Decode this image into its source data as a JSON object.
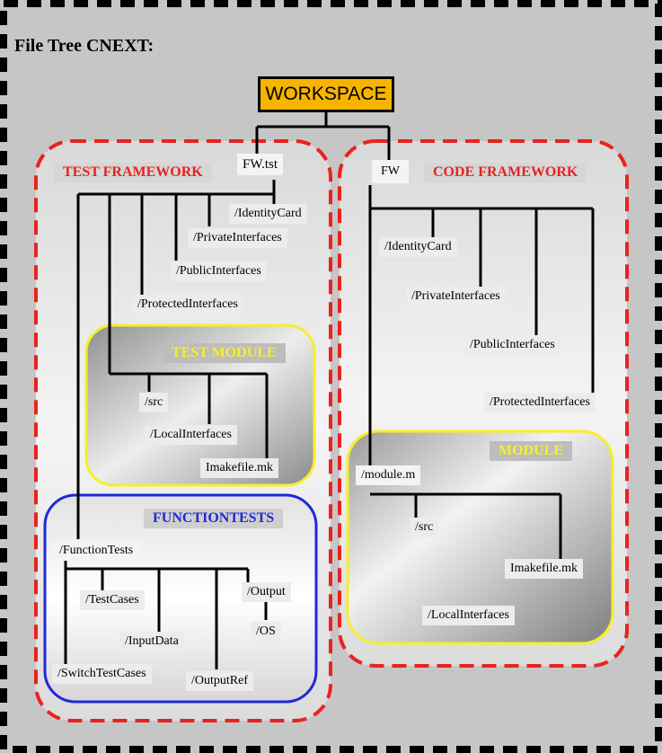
{
  "title": "File Tree CNEXT:",
  "root": "WORKSPACE",
  "test_framework": {
    "header": "TEST FRAMEWORK",
    "root_dir": "FW.tst",
    "dirs": [
      "/IdentityCard",
      "/PrivateInterfaces",
      "/PublicInterfaces",
      "/ProtectedInterfaces"
    ],
    "test_module": {
      "header": "TEST MODULE",
      "items": [
        "/src",
        "/LocalInterfaces",
        "Imakefile.mk"
      ]
    },
    "function_tests": {
      "header": "FUNCTIONTESTS",
      "root_dir": "/FunctionTests",
      "items": [
        "/TestCases",
        "/InputData",
        "/SwitchTestCases",
        "/OutputRef",
        "/Output",
        "/OS"
      ]
    }
  },
  "code_framework": {
    "header": "CODE FRAMEWORK",
    "root_dir": "FW",
    "dirs": [
      "/IdentityCard",
      "/PrivateInterfaces",
      "/PublicInterfaces",
      "/ProtectedInterfaces"
    ],
    "module": {
      "header": "MODULE",
      "root_dir": "/module.m",
      "items": [
        "/src",
        "Imakefile.mk",
        "/LocalInterfaces"
      ]
    }
  },
  "colors": {
    "border_dash": "#000000",
    "background": "#c6c6c6",
    "framework_border": "#e8231f",
    "module_border": "#f6ef2a",
    "functiontests_border": "#1f2ad8",
    "workspace_fill": "#f6b400"
  }
}
